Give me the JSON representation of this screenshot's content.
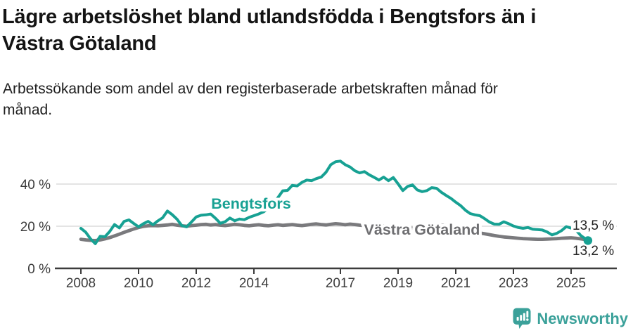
{
  "header": {
    "title_lines": [
      "Lägre arbetslöshet bland utlandsfödda i Bengtsfors än i",
      "Västra Götaland"
    ],
    "subtitle_lines": [
      "Arbetssökande som andel av den registerbaserade arbetskraften månad för",
      "månad."
    ]
  },
  "chart_data": {
    "type": "line",
    "title": "Lägre arbetslöshet bland utlandsfödda i Bengtsfors än i Västra Götaland",
    "subtitle": "Arbetssökande som andel av den registerbaserade arbetskraften månad för månad.",
    "x_axis": {
      "start_year": 2008,
      "step_years": 0.1666667,
      "last_point_year": 2025.583,
      "tick_years": [
        2008,
        2010,
        2012,
        2014,
        2017,
        2019,
        2021,
        2023,
        2025
      ]
    },
    "y_axis": {
      "tick_values": [
        0,
        20,
        40
      ],
      "tick_labels": [
        "0 %",
        "20 %",
        "40 %"
      ],
      "unit": "%",
      "range": [
        0,
        55
      ],
      "grid": "horizontal"
    },
    "legend_position": "inline-labels-on-lines",
    "series": [
      {
        "name": "Bengtsfors",
        "color": "#17a193",
        "end_label": "13,2 %",
        "last_value": 13.2,
        "values": [
          19,
          17.2,
          14,
          11.7,
          15.2,
          15,
          17.5,
          20.8,
          19.2,
          22.3,
          23,
          21.3,
          19.7,
          21.2,
          22.3,
          20.7,
          22.5,
          24,
          27.2,
          25.5,
          23.3,
          20.3,
          19.7,
          22,
          24.4,
          25.2,
          25.4,
          25.8,
          23.8,
          21.4,
          22.1,
          23.9,
          22.6,
          23.4,
          23.1,
          24.2,
          25,
          25.8,
          26.8,
          28.4,
          30.8,
          33.6,
          36.8,
          37,
          39.4,
          39.1,
          40.8,
          41.9,
          41.6,
          42.6,
          43.3,
          45.6,
          49.2,
          50.6,
          50.9,
          49.2,
          48.1,
          46.3,
          45.3,
          45.9,
          44.4,
          43.2,
          41.9,
          43.3,
          41.6,
          43.1,
          40.1,
          36.9,
          38.9,
          39.6,
          37.2,
          36.4,
          36.9,
          38.3,
          38,
          36.1,
          34.6,
          33.2,
          31.4,
          29.8,
          27.6,
          26,
          25.4,
          25,
          23.6,
          22,
          21,
          20.9,
          22.1,
          21.2,
          20.1,
          19.4,
          19,
          19.4,
          18.6,
          18.4,
          18.2,
          17.3,
          15.9,
          16.6,
          17.9,
          19.8,
          19.1,
          18.2,
          15.6,
          13.2
        ]
      },
      {
        "name": "Västra Götaland",
        "color": "#7a7a7d",
        "end_label": "13,5 %",
        "last_value": 13.5,
        "values": [
          13.8,
          13.5,
          13.3,
          13.2,
          13.5,
          14,
          14.6,
          15.4,
          16.2,
          17.1,
          17.9,
          18.7,
          19.4,
          19.9,
          20.2,
          20.3,
          20.2,
          20.4,
          20.6,
          20.9,
          20.5,
          20.2,
          20,
          20.3,
          20.5,
          20.8,
          20.9,
          20.6,
          20.8,
          20.5,
          20.3,
          20.6,
          20.9,
          20.7,
          20.4,
          20.2,
          20.5,
          20.7,
          20.4,
          20.2,
          20.5,
          20.7,
          20.4,
          20.6,
          20.8,
          20.5,
          20.3,
          20.6,
          20.9,
          21.1,
          20.8,
          20.6,
          20.9,
          21.2,
          21,
          20.7,
          21,
          20.8,
          20.5,
          20.3,
          20.6,
          20.4,
          20.1,
          20.2,
          19.9,
          19.7,
          19.5,
          19.3,
          19.1,
          19,
          19.2,
          19.4,
          19.7,
          20.3,
          20.8,
          20.6,
          20.2,
          19.8,
          19.3,
          18.7,
          18.1,
          17.6,
          17.2,
          16.8,
          16.4,
          16,
          15.6,
          15.2,
          14.9,
          14.7,
          14.5,
          14.3,
          14.1,
          14,
          13.9,
          13.8,
          13.8,
          13.9,
          14,
          14.1,
          14.3,
          14.4,
          14.5,
          14.3,
          14,
          13.5
        ]
      }
    ]
  },
  "footer": {
    "brand": "Newsworthy",
    "logo_color": "#3ba19a"
  }
}
